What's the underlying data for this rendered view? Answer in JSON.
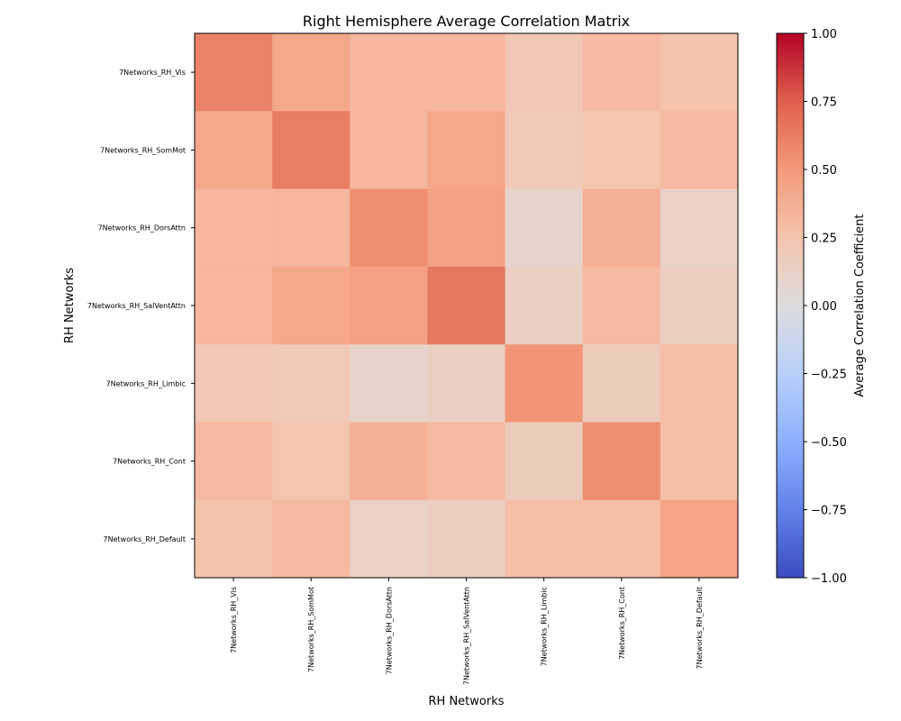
{
  "chart_data": {
    "type": "heatmap",
    "title": "Right Hemisphere Average Correlation Matrix",
    "xlabel": "RH Networks",
    "ylabel": "RH Networks",
    "colorbar_label": "Average Correlation Coefficient",
    "colormap": "coolwarm",
    "vmin": -1.0,
    "vmax": 1.0,
    "colorbar_ticks": [
      -1.0,
      -0.75,
      -0.5,
      -0.25,
      0.0,
      0.25,
      0.5,
      0.75,
      1.0
    ],
    "colorbar_tick_labels": [
      "−1.00",
      "−0.75",
      "−0.50",
      "−0.25",
      "0.00",
      "0.25",
      "0.50",
      "0.75",
      "1.00"
    ],
    "categories": [
      "7Networks_RH_Vis",
      "7Networks_RH_SomMot",
      "7Networks_RH_DorsAttn",
      "7Networks_RH_SalVentAttn",
      "7Networks_RH_Limbic",
      "7Networks_RH_Cont",
      "7Networks_RH_Default"
    ],
    "values": [
      [
        0.6,
        0.42,
        0.33,
        0.33,
        0.22,
        0.31,
        0.25
      ],
      [
        0.42,
        0.62,
        0.33,
        0.42,
        0.2,
        0.24,
        0.31
      ],
      [
        0.33,
        0.33,
        0.55,
        0.45,
        0.1,
        0.37,
        0.12
      ],
      [
        0.33,
        0.42,
        0.45,
        0.65,
        0.14,
        0.31,
        0.15
      ],
      [
        0.22,
        0.2,
        0.1,
        0.14,
        0.52,
        0.17,
        0.28
      ],
      [
        0.31,
        0.24,
        0.37,
        0.31,
        0.17,
        0.55,
        0.28
      ],
      [
        0.25,
        0.31,
        0.12,
        0.15,
        0.28,
        0.28,
        0.44
      ]
    ]
  }
}
